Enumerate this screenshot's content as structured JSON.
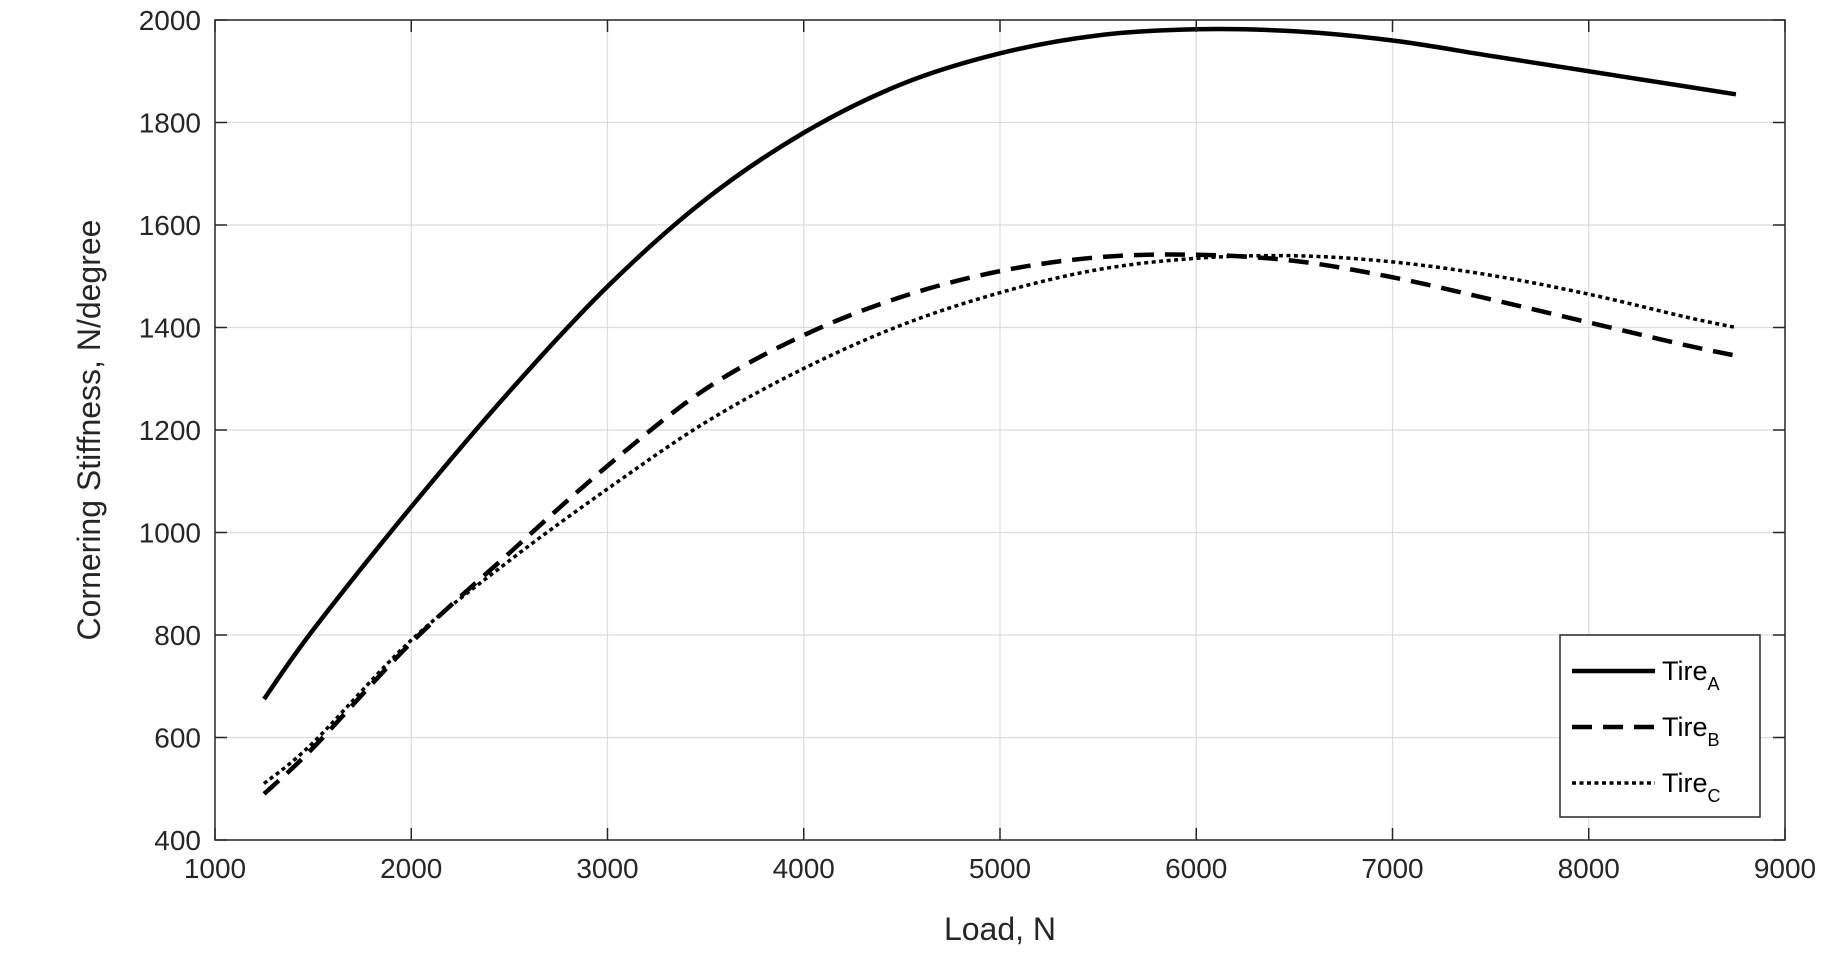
{
  "chart_data": {
    "type": "line",
    "title": "",
    "xlabel": "Load, N",
    "ylabel": "Cornering Stiffness, N/degree",
    "xlim": [
      1000,
      9000
    ],
    "ylim": [
      400,
      2000
    ],
    "xticks": [
      1000,
      2000,
      3000,
      4000,
      5000,
      6000,
      7000,
      8000,
      9000
    ],
    "yticks": [
      400,
      600,
      800,
      1000,
      1200,
      1400,
      1600,
      1800,
      2000
    ],
    "grid": true,
    "legend_position": "bottom-right",
    "x": [
      1250,
      1500,
      2000,
      2500,
      3000,
      3500,
      4000,
      4500,
      5000,
      5500,
      6000,
      6500,
      7000,
      7500,
      8000,
      8500,
      8750
    ],
    "series": [
      {
        "name": "Tire",
        "subscript": "A",
        "dash": "solid",
        "values": [
          675,
          810,
          1050,
          1275,
          1480,
          1650,
          1780,
          1875,
          1935,
          1970,
          1982,
          1978,
          1960,
          1930,
          1900,
          1870,
          1855
        ]
      },
      {
        "name": "Tire",
        "subscript": "B",
        "dash": "dashed",
        "values": [
          490,
          580,
          785,
          960,
          1130,
          1280,
          1385,
          1460,
          1510,
          1537,
          1542,
          1530,
          1498,
          1455,
          1410,
          1365,
          1345
        ]
      },
      {
        "name": "Tire",
        "subscript": "C",
        "dash": "dotted",
        "values": [
          510,
          590,
          790,
          945,
          1085,
          1215,
          1320,
          1405,
          1468,
          1513,
          1535,
          1540,
          1528,
          1502,
          1465,
          1420,
          1400
        ]
      }
    ]
  }
}
